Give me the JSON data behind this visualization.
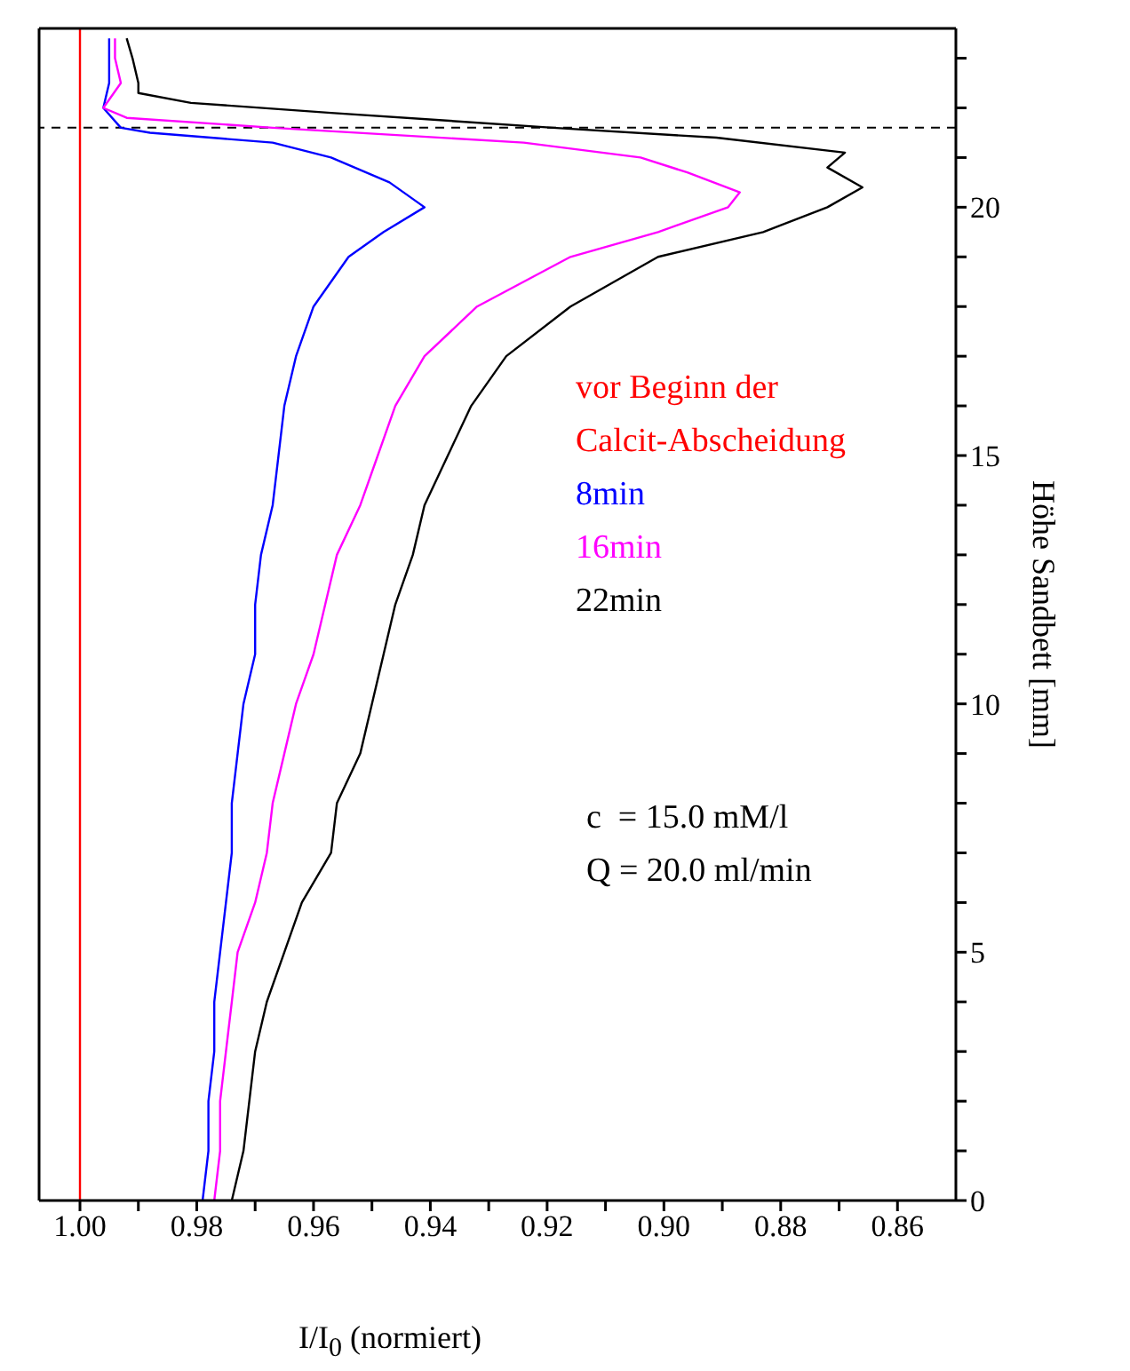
{
  "chart_data": {
    "type": "line",
    "xlabel": "I/I$_{0}$ (normiert)",
    "ylabel": "Höhe Sandbett [mm]",
    "xlim": [
      1.007,
      0.85
    ],
    "ylim": [
      0,
      23.6
    ],
    "xticks": [
      {
        "value": 1.0,
        "label": "1.00"
      },
      {
        "value": 0.99,
        "label": null
      },
      {
        "value": 0.98,
        "label": "0.98"
      },
      {
        "value": 0.97,
        "label": null
      },
      {
        "value": 0.96,
        "label": "0.96"
      },
      {
        "value": 0.95,
        "label": null
      },
      {
        "value": 0.94,
        "label": "0.94"
      },
      {
        "value": 0.93,
        "label": null
      },
      {
        "value": 0.92,
        "label": "0.92"
      },
      {
        "value": 0.91,
        "label": null
      },
      {
        "value": 0.9,
        "label": "0.90"
      },
      {
        "value": 0.89,
        "label": null
      },
      {
        "value": 0.88,
        "label": "0.88"
      },
      {
        "value": 0.87,
        "label": null
      },
      {
        "value": 0.86,
        "label": "0.86"
      }
    ],
    "yticks": [
      0,
      {
        "value": 1,
        "label": null
      },
      {
        "value": 2,
        "label": null
      },
      {
        "value": 3,
        "label": null
      },
      {
        "value": 4,
        "label": null
      },
      5,
      {
        "value": 6,
        "label": null
      },
      {
        "value": 7,
        "label": null
      },
      {
        "value": 8,
        "label": null
      },
      {
        "value": 9,
        "label": null
      },
      10,
      {
        "value": 11,
        "label": null
      },
      {
        "value": 12,
        "label": null
      },
      {
        "value": 13,
        "label": null
      },
      {
        "value": 14,
        "label": null
      },
      15,
      {
        "value": 16,
        "label": null
      },
      {
        "value": 17,
        "label": null
      },
      {
        "value": 18,
        "label": null
      },
      {
        "value": 19,
        "label": null
      },
      20,
      {
        "value": 21,
        "label": null
      },
      {
        "value": 22,
        "label": null
      },
      {
        "value": 23,
        "label": null
      }
    ],
    "legend": "right",
    "marker": "none",
    "line_style": "solid",
    "ref_lines": [
      {
        "axis": "y",
        "value": 21.6,
        "color": "#000000",
        "line_style": "dashed"
      }
    ],
    "annotations": [
      "c  = 15.0 mM/l",
      "Q = 20.0 ml/min"
    ],
    "series": [
      {
        "name": "vor Beginn der Calcit-Abscheidung",
        "color": "#ff0000",
        "x": [
          1.0,
          1.0
        ],
        "values": [
          0,
          23.6
        ]
      },
      {
        "name": "8min",
        "color": "#0000ff",
        "x": [
          0.979,
          0.978,
          0.978,
          0.977,
          0.977,
          0.976,
          0.975,
          0.974,
          0.974,
          0.973,
          0.972,
          0.97,
          0.97,
          0.969,
          0.967,
          0.966,
          0.965,
          0.963,
          0.96,
          0.954,
          0.948,
          0.941,
          0.947,
          0.957,
          0.967,
          0.988,
          0.993,
          0.996,
          0.995,
          0.995,
          0.995
        ],
        "values": [
          0,
          1,
          2,
          3,
          4,
          5,
          6,
          7,
          8,
          9,
          10,
          11,
          12,
          13,
          14,
          15,
          16,
          17,
          18,
          19,
          19.5,
          20,
          20.5,
          21,
          21.3,
          21.5,
          21.6,
          22,
          22.5,
          23,
          23.4
        ]
      },
      {
        "name": "16min",
        "color": "#ff00ff",
        "x": [
          0.977,
          0.976,
          0.976,
          0.975,
          0.974,
          0.973,
          0.97,
          0.968,
          0.967,
          0.965,
          0.963,
          0.96,
          0.958,
          0.956,
          0.952,
          0.949,
          0.946,
          0.941,
          0.932,
          0.916,
          0.901,
          0.889,
          0.887,
          0.896,
          0.904,
          0.924,
          0.967,
          0.992,
          0.996,
          0.993,
          0.994,
          0.994
        ],
        "values": [
          0,
          1,
          2,
          3,
          4,
          5,
          6,
          7,
          8,
          9,
          10,
          11,
          12,
          13,
          14,
          15,
          16,
          17,
          18,
          19,
          19.5,
          20,
          20.3,
          20.7,
          21,
          21.3,
          21.6,
          21.8,
          22,
          22.5,
          23,
          23.4
        ]
      },
      {
        "name": "22min",
        "color": "#000000",
        "x": [
          0.974,
          0.972,
          0.971,
          0.97,
          0.968,
          0.965,
          0.962,
          0.957,
          0.956,
          0.952,
          0.95,
          0.948,
          0.946,
          0.943,
          0.941,
          0.937,
          0.933,
          0.927,
          0.916,
          0.901,
          0.883,
          0.872,
          0.866,
          0.872,
          0.869,
          0.891,
          0.919,
          0.957,
          0.981,
          0.99,
          0.99,
          0.991,
          0.992
        ],
        "values": [
          0,
          1,
          2,
          3,
          4,
          5,
          6,
          7,
          8,
          9,
          10,
          11,
          12,
          13,
          14,
          15,
          16,
          17,
          18,
          19,
          19.5,
          20,
          20.4,
          20.8,
          21.1,
          21.4,
          21.6,
          21.9,
          22.1,
          22.3,
          22.5,
          23,
          23.4
        ]
      }
    ]
  }
}
